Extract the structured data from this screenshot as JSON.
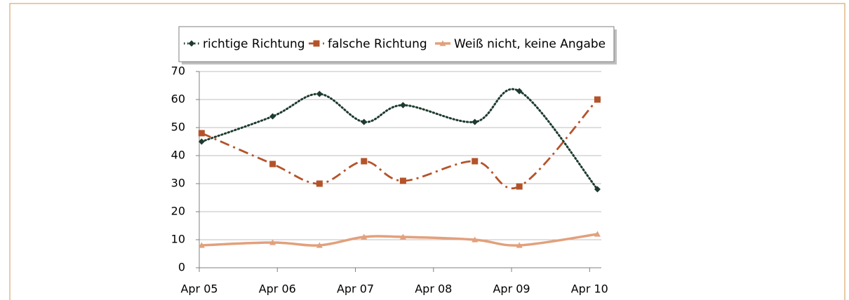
{
  "chart_data": {
    "type": "line",
    "x": [
      2005.28,
      2006.19,
      2006.79,
      2007.36,
      2007.86,
      2008.78,
      2009.35,
      2010.35
    ],
    "xlim": [
      2005.25,
      2010.4
    ],
    "xticks": [
      {
        "value": 2005.25,
        "label": "Apr 05"
      },
      {
        "value": 2006.25,
        "label": "Apr 06"
      },
      {
        "value": 2007.25,
        "label": "Apr 07"
      },
      {
        "value": 2008.25,
        "label": "Apr 08"
      },
      {
        "value": 2009.25,
        "label": "Apr 09"
      },
      {
        "value": 2010.25,
        "label": "Apr 10"
      }
    ],
    "ylim": [
      0,
      70
    ],
    "yticks": [
      0,
      10,
      20,
      30,
      40,
      50,
      60,
      70
    ],
    "grid": true,
    "legend": "top",
    "series": [
      {
        "name": "richtige Richtung",
        "color": "#1d3b2e",
        "marker": "diamond",
        "line_style": "dotted",
        "values": [
          45,
          54,
          62,
          52,
          58,
          52,
          63,
          28
        ]
      },
      {
        "name": "falsche Richtung",
        "color": "#b4532a",
        "marker": "square",
        "line_style": "dashdot",
        "values": [
          48,
          37,
          30,
          38,
          31,
          38,
          29,
          60
        ]
      },
      {
        "name": "Weiß nicht, keine Angabe",
        "color": "#e2a07c",
        "marker": "triangle",
        "line_style": "solid",
        "values": [
          8,
          9,
          8,
          11,
          11,
          10,
          8,
          12
        ]
      }
    ]
  }
}
